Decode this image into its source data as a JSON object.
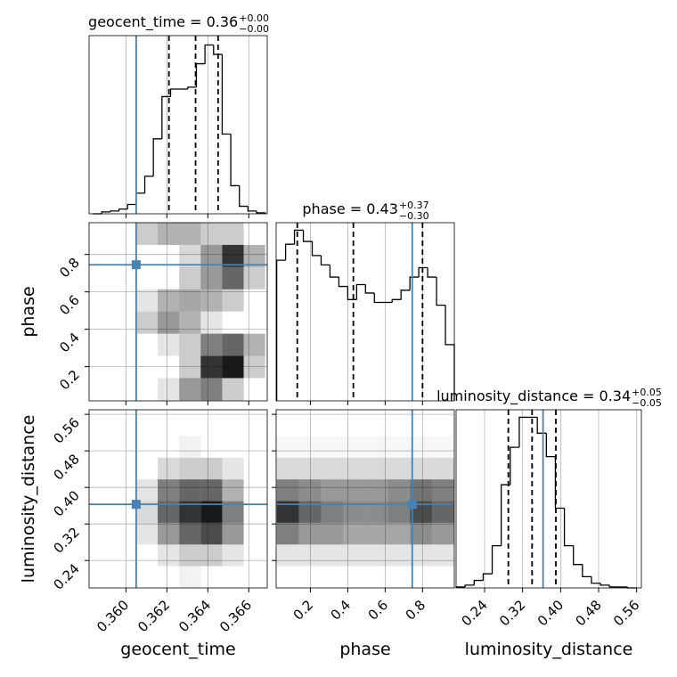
{
  "chart_data": {
    "type": "corner",
    "params": [
      {
        "name": "geocent_time",
        "title": "geocent_time = 0.36",
        "plus": "+0.00",
        "minus": "−0.00",
        "lim": [
          0.3582,
          0.3669
        ],
        "ticks": [
          {
            "value": 0.36,
            "label": "0.360"
          },
          0.362,
          0.364,
          0.366
        ],
        "truth": 0.3605,
        "quantiles": [
          0.3621,
          0.3634,
          0.3645
        ],
        "hist": {
          "bins": [
            0.3584,
            0.35882,
            0.35924,
            0.35966,
            0.36008,
            0.3605,
            0.36092,
            0.36134,
            0.36176,
            0.36218,
            0.3626,
            0.36302,
            0.36344,
            0.36386,
            0.36428,
            0.3647,
            0.36512,
            0.36554,
            0.36596,
            0.36638,
            0.3668
          ],
          "counts": [
            0,
            2,
            3,
            5,
            10,
            22,
            40,
            80,
            125,
            133,
            133,
            135,
            160,
            180,
            170,
            85,
            30,
            8,
            3,
            1
          ],
          "ylim": [
            0,
            190
          ]
        }
      },
      {
        "name": "phase",
        "title": "phase = 0.43",
        "plus": "+0.37",
        "minus": "−0.30",
        "lim": [
          0.017,
          0.97
        ],
        "ticks": [
          0.2,
          0.4,
          0.6,
          0.8
        ],
        "truth": 0.745,
        "quantiles": [
          0.13,
          0.43,
          0.8
        ],
        "hist": {
          "bins": [
            0.02,
            0.0675,
            0.115,
            0.1625,
            0.21,
            0.2575,
            0.305,
            0.3525,
            0.4,
            0.4475,
            0.495,
            0.5425,
            0.59,
            0.6375,
            0.685,
            0.7325,
            0.78,
            0.8275,
            0.875,
            0.9225,
            0.97
          ],
          "counts": [
            150,
            167,
            182,
            170,
            155,
            145,
            132,
            122,
            108,
            124,
            115,
            105,
            105,
            108,
            118,
            132,
            142,
            132,
            102,
            60
          ],
          "ylim": [
            0,
            190
          ]
        }
      },
      {
        "name": "luminosity_distance",
        "title": "luminosity_distance = 0.34",
        "plus": "+0.05",
        "minus": "−0.05",
        "lim": [
          0.18,
          0.57
        ],
        "ticks": [
          0.24,
          0.32,
          {
            "value": 0.4,
            "label": "0.40"
          },
          0.48,
          0.56
        ],
        "truth": 0.363,
        "quantiles": [
          0.29,
          0.34,
          0.39
        ],
        "hist": {
          "bins": [
            0.18,
            0.199,
            0.218,
            0.237,
            0.256,
            0.275,
            0.294,
            0.313,
            0.332,
            0.351,
            0.37,
            0.389,
            0.408,
            0.427,
            0.446,
            0.465,
            0.484,
            0.503,
            0.522,
            0.541,
            0.56
          ],
          "counts": [
            1,
            3,
            8,
            15,
            45,
            110,
            150,
            182,
            182,
            165,
            140,
            85,
            45,
            25,
            12,
            5,
            3,
            1,
            1,
            0
          ],
          "ylim": [
            0,
            190
          ]
        }
      }
    ],
    "density_panels": [
      {
        "xedges": [
          0.3584,
          0.35945,
          0.3605,
          0.36155,
          0.3626,
          0.36365,
          0.3647,
          0.36575,
          0.3668
        ],
        "yedges": [
          0.02,
          0.13875,
          0.2575,
          0.37625,
          0.495,
          0.61375,
          0.7325,
          0.85125,
          0.97
        ],
        "z": [
          [
            0,
            0,
            0,
            0.1,
            0.4,
            0.5,
            0.2,
            0
          ],
          [
            0,
            0,
            0,
            0,
            0.2,
            0.8,
            0.9,
            0.2
          ],
          [
            0,
            0,
            0,
            0.1,
            0.2,
            0.5,
            0.6,
            0.3
          ],
          [
            0,
            0,
            0.2,
            0.4,
            0.3,
            0.1,
            0,
            0
          ],
          [
            0,
            0,
            0.1,
            0.3,
            0.35,
            0.3,
            0.2,
            0
          ],
          [
            0,
            0,
            0,
            0,
            0.2,
            0.4,
            0.6,
            0.2
          ],
          [
            0,
            0,
            0,
            0,
            0.15,
            0.4,
            0.8,
            0.3
          ],
          [
            0,
            0,
            0.2,
            0.3,
            0.3,
            0.2,
            0.2,
            0
          ]
        ]
      },
      {
        "xedges": [
          0.3584,
          0.35945,
          0.3605,
          0.36155,
          0.3626,
          0.36365,
          0.3647,
          0.36575,
          0.3668
        ],
        "yedges": [
          0.18,
          0.2275,
          0.275,
          0.3225,
          0.37,
          0.4175,
          0.465,
          0.5125,
          0.56
        ],
        "z": [
          [
            0,
            0,
            0,
            0,
            0.05,
            0,
            0,
            0
          ],
          [
            0,
            0,
            0,
            0.1,
            0.2,
            0.2,
            0.1,
            0
          ],
          [
            0,
            0,
            0.1,
            0.4,
            0.6,
            0.7,
            0.4,
            0
          ],
          [
            0,
            0,
            0.15,
            0.6,
            0.8,
            0.9,
            0.5,
            0
          ],
          [
            0,
            0,
            0.1,
            0.5,
            0.6,
            0.6,
            0.3,
            0
          ],
          [
            0,
            0,
            0,
            0.15,
            0.2,
            0.2,
            0.1,
            0
          ],
          [
            0,
            0,
            0,
            0,
            0.05,
            0,
            0,
            0
          ],
          [
            0,
            0,
            0,
            0,
            0,
            0,
            0,
            0
          ]
        ]
      },
      {
        "xedges": [
          0.02,
          0.13875,
          0.2575,
          0.37625,
          0.495,
          0.61375,
          0.7325,
          0.85125,
          0.97
        ],
        "yedges": [
          0.18,
          0.2275,
          0.275,
          0.3225,
          0.37,
          0.4175,
          0.465,
          0.5125,
          0.56
        ],
        "z": [
          [
            0,
            0,
            0,
            0,
            0,
            0,
            0,
            0
          ],
          [
            0.1,
            0.1,
            0.1,
            0.1,
            0.1,
            0.1,
            0.1,
            0.1
          ],
          [
            0.5,
            0.4,
            0.4,
            0.35,
            0.35,
            0.35,
            0.45,
            0.4
          ],
          [
            0.8,
            0.6,
            0.5,
            0.45,
            0.45,
            0.5,
            0.7,
            0.6
          ],
          [
            0.5,
            0.45,
            0.4,
            0.4,
            0.4,
            0.45,
            0.55,
            0.5
          ],
          [
            0.15,
            0.15,
            0.15,
            0.15,
            0.15,
            0.15,
            0.15,
            0.15
          ],
          [
            0.03,
            0.03,
            0.03,
            0.03,
            0.03,
            0.03,
            0.03,
            0.03
          ],
          [
            0,
            0,
            0,
            0,
            0,
            0,
            0,
            0
          ]
        ]
      }
    ],
    "truth_color": "#4682b4"
  }
}
